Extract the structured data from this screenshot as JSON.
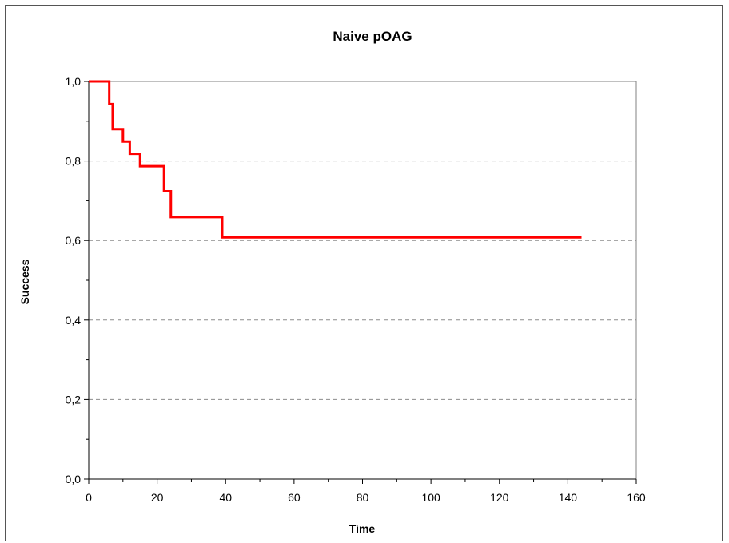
{
  "chart_data": {
    "type": "line",
    "title": "Naive pOAG",
    "xlabel": "Time",
    "ylabel": "Success",
    "xlim": [
      0,
      160
    ],
    "ylim": [
      0,
      1
    ],
    "x_ticks": [
      0,
      20,
      40,
      60,
      80,
      100,
      120,
      140,
      160
    ],
    "y_ticks": [
      0,
      0.2,
      0.4,
      0.6,
      0.8,
      1.0
    ],
    "x_tick_labels": [
      "0",
      "20",
      "40",
      "60",
      "80",
      "100",
      "120",
      "140",
      "160"
    ],
    "y_tick_labels": [
      "0,0",
      "0,2",
      "0,4",
      "0,6",
      "0,8",
      "1,0"
    ],
    "grid": "horizontal dashed",
    "step": true,
    "series": [
      {
        "color": "#ff0000",
        "x": [
          0,
          6,
          7,
          10,
          12,
          15,
          22,
          24,
          39,
          144
        ],
        "y": [
          1.0,
          0.943,
          0.88,
          0.849,
          0.818,
          0.787,
          0.724,
          0.659,
          0.608,
          0.608
        ]
      }
    ]
  }
}
